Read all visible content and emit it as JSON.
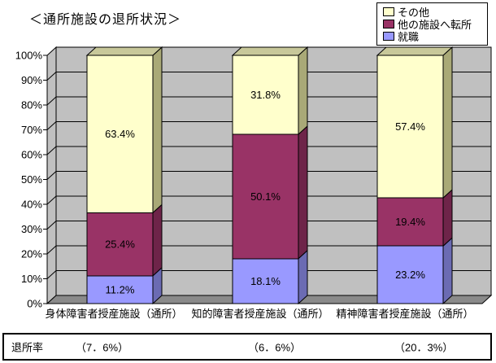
{
  "title": "＜通所施設の退所状況＞",
  "legend": {
    "items": [
      {
        "label": "その他",
        "color": "#FFFFCC"
      },
      {
        "label": "他の施設へ転所",
        "color": "#993366"
      },
      {
        "label": "就職",
        "color": "#9999FF"
      }
    ]
  },
  "chart_data": {
    "type": "bar",
    "stacked": true,
    "projection": "3d",
    "title": "＜通所施設の退所状況＞",
    "categories": [
      "身体障害者授産施設（通所）",
      "知的障害者授産施設（通所）",
      "精神障害者授産施設（通所）"
    ],
    "series": [
      {
        "name": "就職",
        "color": "#9999FF",
        "side_color": "#6B6BB3",
        "top_color": "#8080D6",
        "values": [
          11.2,
          18.1,
          23.2
        ]
      },
      {
        "name": "他の施設へ転所",
        "color": "#993366",
        "side_color": "#6E2449",
        "top_color": "#832C57",
        "values": [
          25.4,
          50.1,
          19.4
        ]
      },
      {
        "name": "その他",
        "color": "#FFFFCC",
        "side_color": "#A9A977",
        "top_color": "#C8C89A",
        "values": [
          63.4,
          31.8,
          57.4
        ]
      }
    ],
    "value_suffix": "%",
    "ylim": [
      0,
      100
    ],
    "yticks": [
      "0%",
      "10%",
      "20%",
      "30%",
      "40%",
      "50%",
      "60%",
      "70%",
      "80%",
      "90%",
      "100%"
    ],
    "grid": true,
    "legend_position": "top-right",
    "wall_color": "#C0C0C0",
    "floor_color": "#8A8A8A"
  },
  "footer": {
    "label": "退所率",
    "values": [
      "（7．6%）",
      "（6．6%）",
      "（20．3%）"
    ]
  }
}
